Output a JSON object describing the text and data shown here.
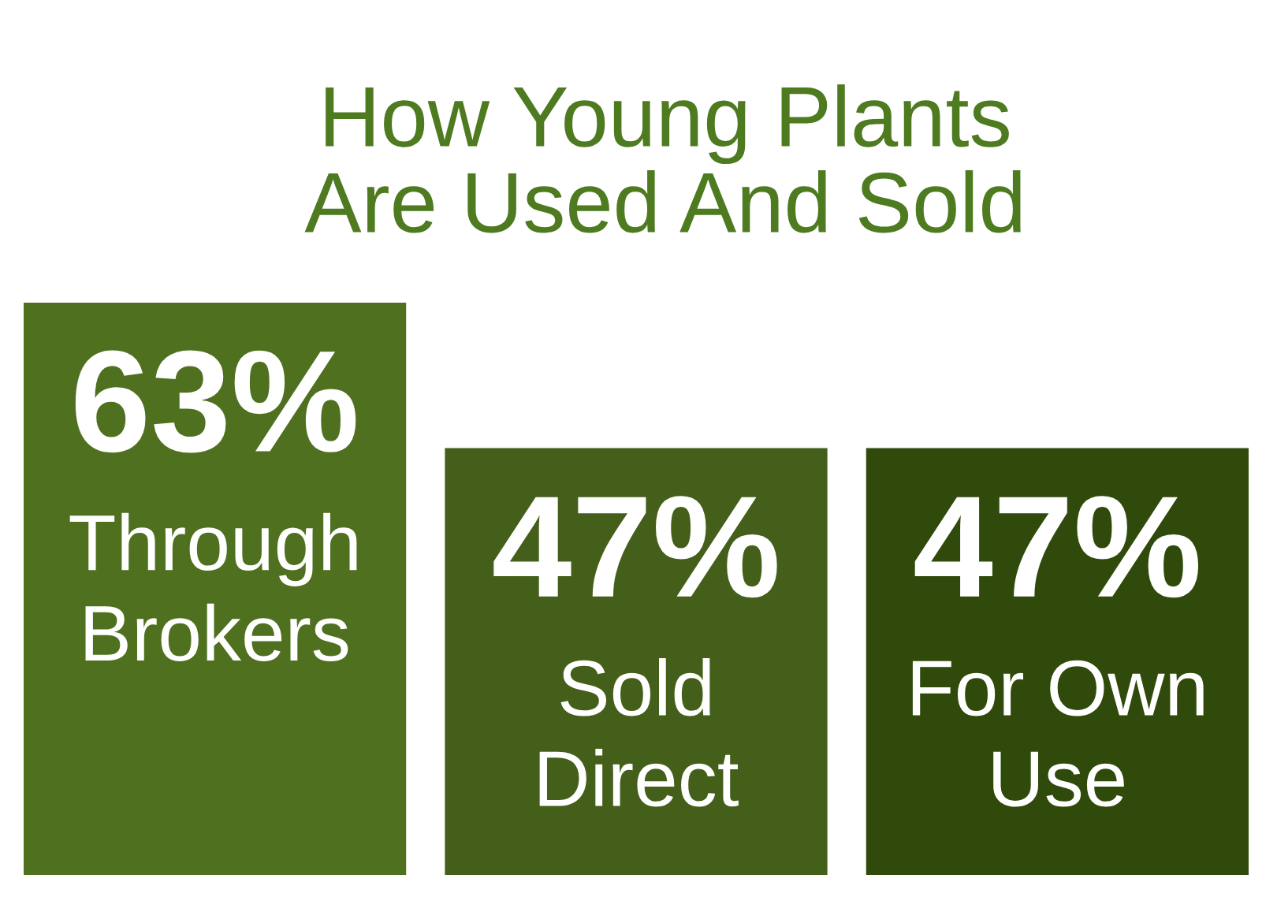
{
  "chart_data": {
    "type": "bar",
    "title": "How Young Plants\nAre Used And Sold",
    "categories": [
      "Through\nBrokers",
      "Sold\nDirect",
      "For Own\nUse"
    ],
    "values": [
      63,
      47,
      47
    ],
    "value_labels": [
      "63%",
      "47%",
      "47%"
    ],
    "colors": [
      "#4f711f",
      "#445f19",
      "#2f4a0a"
    ]
  }
}
